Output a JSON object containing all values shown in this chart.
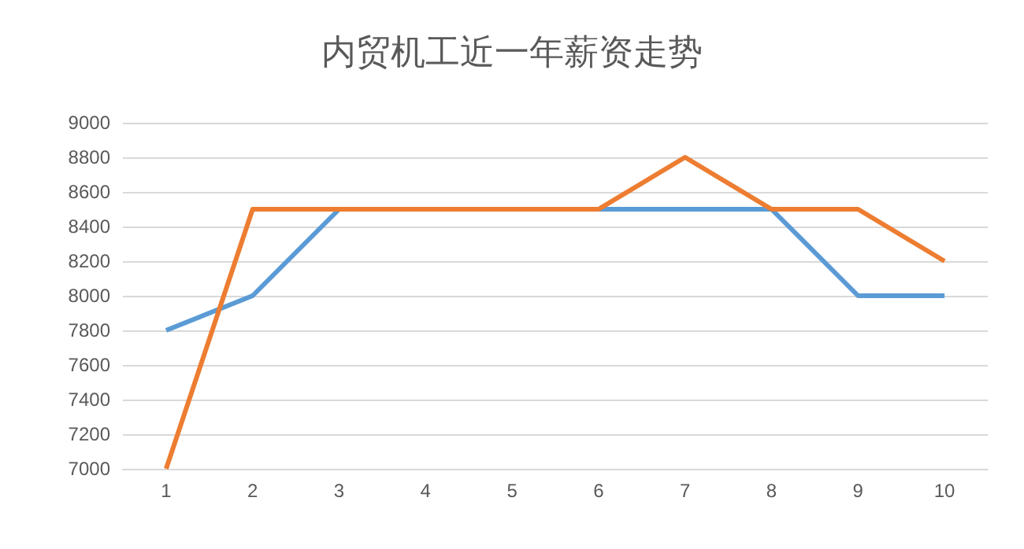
{
  "chart_data": {
    "type": "line",
    "title": "内贸机工近一年薪资走势",
    "categories": [
      "1",
      "2",
      "3",
      "4",
      "5",
      "6",
      "7",
      "8",
      "9",
      "10"
    ],
    "series": [
      {
        "color": "#5b9bd5",
        "values": [
          7800,
          8000,
          8500,
          8500,
          8500,
          8500,
          8500,
          8500,
          8000,
          8000
        ]
      },
      {
        "color": "#ed7d31",
        "values": [
          7000,
          8500,
          8500,
          8500,
          8500,
          8500,
          8800,
          8500,
          8500,
          8200
        ]
      }
    ],
    "ylim": [
      7000,
      9000
    ],
    "yticks": [
      7000,
      7200,
      7400,
      7600,
      7800,
      8000,
      8200,
      8400,
      8600,
      8800,
      9000
    ],
    "grid": "y",
    "marker": "none",
    "line_style": "solid"
  }
}
